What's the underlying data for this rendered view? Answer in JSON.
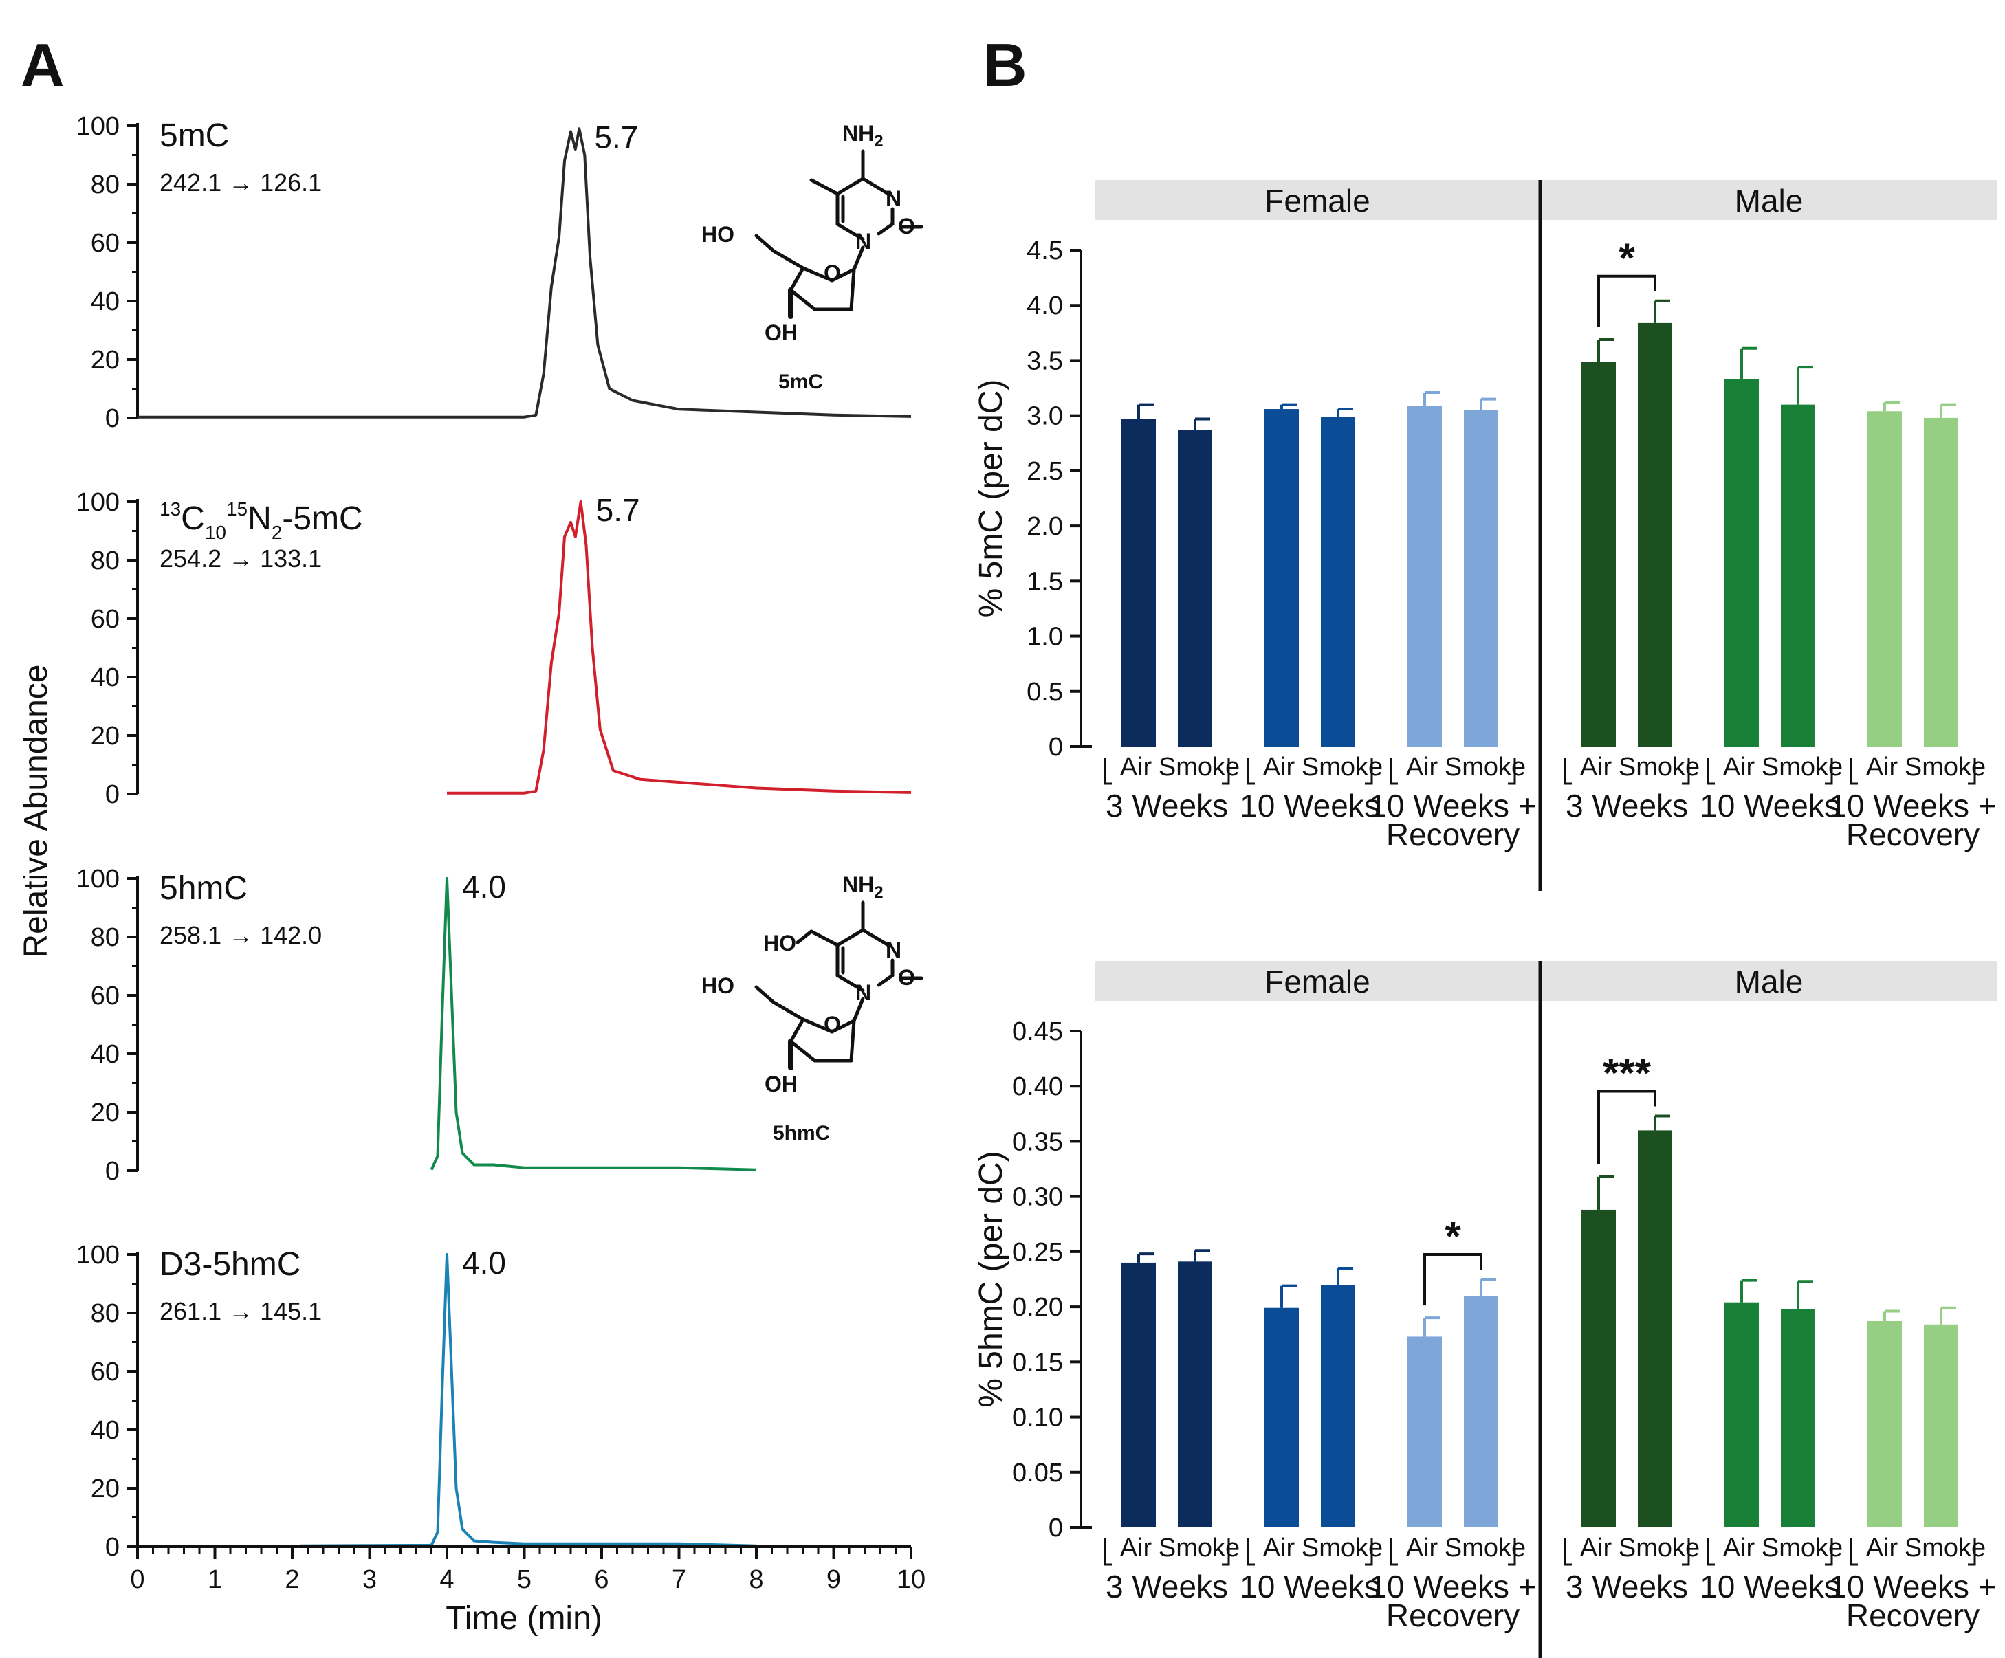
{
  "panels": {
    "a_label": "A",
    "b_label": "B"
  },
  "chart_data": [
    {
      "type": "line",
      "panel": "A",
      "ylabel": "Relative Abundance",
      "xlabel": "Time (min)",
      "xlim": [
        0,
        10
      ],
      "x_ticks": [
        "0",
        "1",
        "2",
        "3",
        "4",
        "5",
        "6",
        "7",
        "8",
        "9",
        "10"
      ],
      "ylim": [
        0,
        100
      ],
      "y_ticks": [
        "0",
        "20",
        "40",
        "60",
        "80",
        "100"
      ],
      "traces": [
        {
          "name": "5mC",
          "transition": "242.1 → 126.1",
          "peak_label": "5.7",
          "peak_rt": 5.7,
          "color": "#2a2a2a",
          "x_start": 0.0,
          "x_end": 10.0,
          "structure": "5mC",
          "points": [
            [
              0,
              0.3
            ],
            [
              5.0,
              0.3
            ],
            [
              5.15,
              1
            ],
            [
              5.25,
              15
            ],
            [
              5.35,
              45
            ],
            [
              5.45,
              62
            ],
            [
              5.52,
              88
            ],
            [
              5.6,
              98
            ],
            [
              5.66,
              92
            ],
            [
              5.71,
              99
            ],
            [
              5.78,
              90
            ],
            [
              5.85,
              55
            ],
            [
              5.95,
              25
            ],
            [
              6.1,
              10
            ],
            [
              6.4,
              6
            ],
            [
              7.0,
              3
            ],
            [
              8.0,
              2
            ],
            [
              9.0,
              1
            ],
            [
              10.0,
              0.5
            ]
          ]
        },
        {
          "name": "13C10 15N2-5mC",
          "transition": "254.2 → 133.1",
          "peak_label": "5.7",
          "peak_rt": 5.7,
          "color": "#d11f2b",
          "x_start": 4.0,
          "x_end": 10.0,
          "points": [
            [
              4.0,
              0.3
            ],
            [
              5.0,
              0.3
            ],
            [
              5.15,
              1
            ],
            [
              5.25,
              15
            ],
            [
              5.35,
              45
            ],
            [
              5.45,
              62
            ],
            [
              5.52,
              88
            ],
            [
              5.6,
              93
            ],
            [
              5.66,
              88
            ],
            [
              5.73,
              100
            ],
            [
              5.8,
              85
            ],
            [
              5.88,
              50
            ],
            [
              5.98,
              22
            ],
            [
              6.15,
              8
            ],
            [
              6.5,
              5
            ],
            [
              7.0,
              4
            ],
            [
              8.0,
              2
            ],
            [
              9.0,
              1
            ],
            [
              10.0,
              0.5
            ]
          ]
        },
        {
          "name": "5hmC",
          "transition": "258.1 → 142.0",
          "peak_label": "4.0",
          "peak_rt": 4.0,
          "color": "#118a4c",
          "x_start": 3.8,
          "x_end": 8.0,
          "structure": "5hmC",
          "points": [
            [
              3.8,
              0.3
            ],
            [
              3.88,
              5
            ],
            [
              3.94,
              55
            ],
            [
              4.0,
              100
            ],
            [
              4.06,
              60
            ],
            [
              4.12,
              20
            ],
            [
              4.2,
              6
            ],
            [
              4.35,
              2
            ],
            [
              4.6,
              2
            ],
            [
              5.0,
              1
            ],
            [
              6.0,
              1
            ],
            [
              7.0,
              1
            ],
            [
              8.0,
              0.3
            ]
          ]
        },
        {
          "name": "D3-5hmC",
          "transition": "261.1 → 145.1",
          "peak_label": "4.0",
          "peak_rt": 4.0,
          "color": "#1a82b5",
          "x_start": 2.1,
          "x_end": 8.0,
          "points": [
            [
              2.1,
              0.3
            ],
            [
              3.8,
              0.5
            ],
            [
              3.88,
              5
            ],
            [
              3.94,
              55
            ],
            [
              4.0,
              100
            ],
            [
              4.06,
              60
            ],
            [
              4.12,
              20
            ],
            [
              4.2,
              6
            ],
            [
              4.35,
              2
            ],
            [
              4.6,
              1.5
            ],
            [
              5.0,
              1
            ],
            [
              6.0,
              1
            ],
            [
              7.0,
              1
            ],
            [
              8.0,
              0.3
            ]
          ]
        }
      ]
    },
    {
      "type": "bar",
      "panel": "B",
      "ylabel": "% 5mC (per dC)",
      "ylim": [
        0,
        4.5
      ],
      "y_ticks": [
        "0",
        "0.5",
        "1.0",
        "1.5",
        "2.0",
        "2.5",
        "3.0",
        "3.5",
        "4.0",
        "4.5"
      ],
      "facets": [
        "Female",
        "Male"
      ],
      "group_labels": [
        [
          "3 Weeks"
        ],
        [
          "10 Weeks"
        ],
        [
          "10 Weeks +",
          "Recovery"
        ],
        [
          "3 Weeks"
        ],
        [
          "10 Weeks"
        ],
        [
          "10 Weeks +",
          "Recovery"
        ]
      ],
      "bar_labels": [
        "Air",
        "Smoke"
      ],
      "bars": [
        {
          "facet": "Female",
          "group": "3 Weeks",
          "condition": "Air",
          "value": 2.97,
          "err": 0.13,
          "color": "#0b2c5c"
        },
        {
          "facet": "Female",
          "group": "3 Weeks",
          "condition": "Smoke",
          "value": 2.87,
          "err": 0.1,
          "color": "#0b2c5c"
        },
        {
          "facet": "Female",
          "group": "10 Weeks",
          "condition": "Air",
          "value": 3.06,
          "err": 0.04,
          "color": "#0a4d96"
        },
        {
          "facet": "Female",
          "group": "10 Weeks",
          "condition": "Smoke",
          "value": 2.99,
          "err": 0.07,
          "color": "#0a4d96"
        },
        {
          "facet": "Female",
          "group": "10 Weeks + Recovery",
          "condition": "Air",
          "value": 3.09,
          "err": 0.12,
          "color": "#7fa6d9"
        },
        {
          "facet": "Female",
          "group": "10 Weeks + Recovery",
          "condition": "Smoke",
          "value": 3.05,
          "err": 0.1,
          "color": "#7fa6d9"
        },
        {
          "facet": "Male",
          "group": "3 Weeks",
          "condition": "Air",
          "value": 3.49,
          "err": 0.2,
          "color": "#1c5020"
        },
        {
          "facet": "Male",
          "group": "3 Weeks",
          "condition": "Smoke",
          "value": 3.84,
          "err": 0.2,
          "color": "#1c5020"
        },
        {
          "facet": "Male",
          "group": "10 Weeks",
          "condition": "Air",
          "value": 3.33,
          "err": 0.28,
          "color": "#198037"
        },
        {
          "facet": "Male",
          "group": "10 Weeks",
          "condition": "Smoke",
          "value": 3.1,
          "err": 0.34,
          "color": "#198037"
        },
        {
          "facet": "Male",
          "group": "10 Weeks + Recovery",
          "condition": "Air",
          "value": 3.04,
          "err": 0.08,
          "color": "#96cf83"
        },
        {
          "facet": "Male",
          "group": "10 Weeks + Recovery",
          "condition": "Smoke",
          "value": 2.98,
          "err": 0.12,
          "color": "#96cf83"
        }
      ],
      "significance": [
        {
          "bars": [
            6,
            7
          ],
          "label": "*"
        }
      ]
    },
    {
      "type": "bar",
      "panel": "B",
      "ylabel": "% 5hmC (per dC)",
      "ylim": [
        0,
        0.45
      ],
      "y_ticks": [
        "0",
        "0.05",
        "0.10",
        "0.15",
        "0.20",
        "0.25",
        "0.30",
        "0.35",
        "0.40",
        "0.45"
      ],
      "facets": [
        "Female",
        "Male"
      ],
      "group_labels": [
        [
          "3 Weeks"
        ],
        [
          "10 Weeks"
        ],
        [
          "10 Weeks +",
          "Recovery"
        ],
        [
          "3 Weeks"
        ],
        [
          "10 Weeks"
        ],
        [
          "10 Weeks +",
          "Recovery"
        ]
      ],
      "bar_labels": [
        "Air",
        "Smoke"
      ],
      "bars": [
        {
          "facet": "Female",
          "group": "3 Weeks",
          "condition": "Air",
          "value": 0.24,
          "err": 0.008,
          "color": "#0b2c5c"
        },
        {
          "facet": "Female",
          "group": "3 Weeks",
          "condition": "Smoke",
          "value": 0.241,
          "err": 0.01,
          "color": "#0b2c5c"
        },
        {
          "facet": "Female",
          "group": "10 Weeks",
          "condition": "Air",
          "value": 0.199,
          "err": 0.02,
          "color": "#0a4d96"
        },
        {
          "facet": "Female",
          "group": "10 Weeks",
          "condition": "Smoke",
          "value": 0.22,
          "err": 0.015,
          "color": "#0a4d96"
        },
        {
          "facet": "Female",
          "group": "10 Weeks + Recovery",
          "condition": "Air",
          "value": 0.173,
          "err": 0.017,
          "color": "#7fa6d9"
        },
        {
          "facet": "Female",
          "group": "10 Weeks + Recovery",
          "condition": "Smoke",
          "value": 0.21,
          "err": 0.015,
          "color": "#7fa6d9"
        },
        {
          "facet": "Male",
          "group": "3 Weeks",
          "condition": "Air",
          "value": 0.288,
          "err": 0.03,
          "color": "#1c5020"
        },
        {
          "facet": "Male",
          "group": "3 Weeks",
          "condition": "Smoke",
          "value": 0.36,
          "err": 0.013,
          "color": "#1c5020"
        },
        {
          "facet": "Male",
          "group": "10 Weeks",
          "condition": "Air",
          "value": 0.204,
          "err": 0.02,
          "color": "#198037"
        },
        {
          "facet": "Male",
          "group": "10 Weeks",
          "condition": "Smoke",
          "value": 0.198,
          "err": 0.025,
          "color": "#198037"
        },
        {
          "facet": "Male",
          "group": "10 Weeks + Recovery",
          "condition": "Air",
          "value": 0.187,
          "err": 0.009,
          "color": "#96cf83"
        },
        {
          "facet": "Male",
          "group": "10 Weeks + Recovery",
          "condition": "Smoke",
          "value": 0.184,
          "err": 0.015,
          "color": "#96cf83"
        }
      ],
      "significance": [
        {
          "bars": [
            4,
            5
          ],
          "label": "*"
        },
        {
          "bars": [
            6,
            7
          ],
          "label": "***"
        }
      ]
    }
  ],
  "structures": {
    "s5mc": {
      "nh2": "NH",
      "nh2_sub": "2",
      "n3": "N",
      "n1": "N",
      "o2": "O",
      "ho": "HO",
      "oh": "OH",
      "ring_o": "O",
      "name": "5mC"
    },
    "s5hmc": {
      "nh2": "NH",
      "nh2_sub": "2",
      "n3": "N",
      "n1": "N",
      "o2": "O",
      "ho": "HO",
      "oh": "OH",
      "ring_o": "O",
      "ho5": "HO",
      "name": "5hmC"
    }
  },
  "labels": {
    "iso": {
      "p13": "13",
      "c": "C",
      "s10": "10",
      "p15": "15",
      "n": "N",
      "s2": "2",
      "tail": "-5mC"
    }
  }
}
